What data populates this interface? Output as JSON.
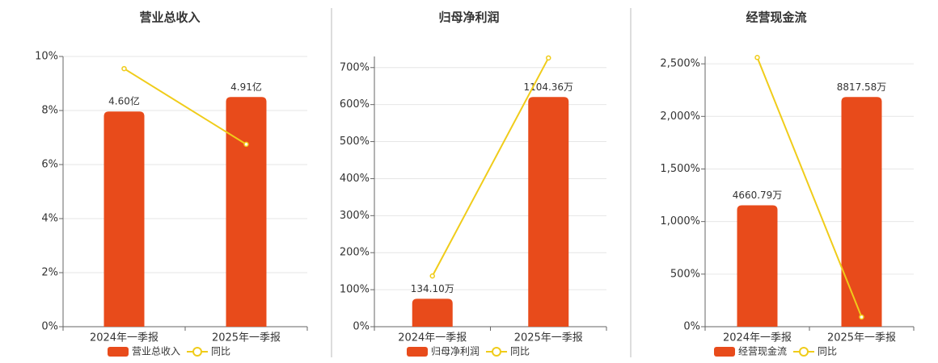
{
  "chart_data": [
    {
      "type": "bar-line",
      "title": "营业总收入",
      "categories": [
        "2024年一季报",
        "2025年一季报"
      ],
      "series": [
        {
          "name": "营业总收入",
          "color": "#e84b1b",
          "values": [
            4.6,
            4.91
          ],
          "value_labels": [
            "4.60亿",
            "4.91亿"
          ]
        },
        {
          "name": "同比",
          "color": "#f0cc1a",
          "values": [
            9.55,
            6.75
          ]
        }
      ],
      "ylim": [
        0,
        10
      ],
      "yticks": [
        {
          "value": 0,
          "label": "0%"
        },
        {
          "value": 2,
          "label": "2%"
        },
        {
          "value": 4,
          "label": "4%"
        },
        {
          "value": 6,
          "label": "6%"
        },
        {
          "value": 8,
          "label": "8%"
        },
        {
          "value": 10,
          "label": "10%"
        }
      ],
      "grid": true
    },
    {
      "type": "bar-line",
      "title": "归母净利润",
      "categories": [
        "2024年一季报",
        "2025年一季报"
      ],
      "series": [
        {
          "name": "归母净利润",
          "color": "#e84b1b",
          "values": [
            134.1,
            1104.36
          ],
          "value_labels": [
            "134.10万",
            "1104.36万"
          ]
        },
        {
          "name": "同比",
          "color": "#f0cc1a",
          "values": [
            137,
            726
          ]
        }
      ],
      "ylim": [
        0,
        730
      ],
      "yticks": [
        {
          "value": 0,
          "label": "0%"
        },
        {
          "value": 100,
          "label": "100%"
        },
        {
          "value": 200,
          "label": "200%"
        },
        {
          "value": 300,
          "label": "300%"
        },
        {
          "value": 400,
          "label": "400%"
        },
        {
          "value": 500,
          "label": "500%"
        },
        {
          "value": 600,
          "label": "600%"
        },
        {
          "value": 700,
          "label": "700%"
        }
      ],
      "grid": true
    },
    {
      "type": "bar-line",
      "title": "经营现金流",
      "categories": [
        "2024年一季报",
        "2025年一季报"
      ],
      "series": [
        {
          "name": "经营现金流",
          "color": "#e84b1b",
          "values": [
            4660.79,
            8817.58
          ],
          "value_labels": [
            "4660.79万",
            "8817.58万"
          ]
        },
        {
          "name": "同比",
          "color": "#f0cc1a",
          "values": [
            2560,
            92
          ]
        }
      ],
      "ylim": [
        0,
        2570
      ],
      "yticks": [
        {
          "value": 0,
          "label": "0%"
        },
        {
          "value": 500,
          "label": "500%"
        },
        {
          "value": 1000,
          "label": "1,000%"
        },
        {
          "value": 1500,
          "label": "1,500%"
        },
        {
          "value": 2000,
          "label": "2,000%"
        },
        {
          "value": 2500,
          "label": "2,500%"
        }
      ],
      "grid": true
    }
  ]
}
